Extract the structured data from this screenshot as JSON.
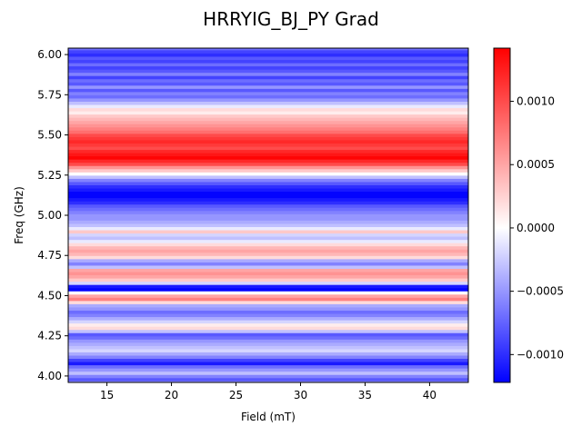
{
  "chart_data": {
    "type": "heatmap",
    "title": "HRRYIG_BJ_PY Grad",
    "xlabel": "Field (mT)",
    "ylabel": "Freq (GHz)",
    "xlim": [
      12,
      43
    ],
    "ylim": [
      3.96,
      6.04
    ],
    "xticks": [
      15,
      20,
      25,
      30,
      35,
      40
    ],
    "yticks": [
      4.0,
      4.25,
      4.5,
      4.75,
      5.0,
      5.25,
      5.5,
      5.75,
      6.0
    ],
    "xtick_labels": [
      "15",
      "20",
      "25",
      "30",
      "35",
      "40"
    ],
    "ytick_labels": [
      "4.00",
      "4.25",
      "4.50",
      "4.75",
      "5.00",
      "5.25",
      "5.50",
      "5.75",
      "6.00"
    ],
    "colormap": "bwr",
    "colors": {
      "low": "#0000ff",
      "mid": "#ffffff",
      "high": "#ff0000"
    },
    "colorbar": {
      "vmin": -0.00122,
      "vmax": 0.00142,
      "ticks": [
        -0.001,
        -0.0005,
        0.0,
        0.0005,
        0.001
      ],
      "tick_labels": [
        "−0.0010",
        "−0.0005",
        "0.0000",
        "0.0005",
        "0.0010"
      ]
    },
    "field_pattern": "values depend on frequency only (constant along field axis)",
    "rows": [
      {
        "freq": 6.04,
        "value": -0.0007
      },
      {
        "freq": 6.02,
        "value": -0.0009
      },
      {
        "freq": 6.0,
        "value": -0.001
      },
      {
        "freq": 5.98,
        "value": -0.0008
      },
      {
        "freq": 5.96,
        "value": -0.0009
      },
      {
        "freq": 5.94,
        "value": -0.0007
      },
      {
        "freq": 5.92,
        "value": -0.0009
      },
      {
        "freq": 5.9,
        "value": -0.0008
      },
      {
        "freq": 5.88,
        "value": -0.0006
      },
      {
        "freq": 5.86,
        "value": -0.0009
      },
      {
        "freq": 5.84,
        "value": -0.0007
      },
      {
        "freq": 5.82,
        "value": -0.0008
      },
      {
        "freq": 5.8,
        "value": -0.0005
      },
      {
        "freq": 5.78,
        "value": -0.0008
      },
      {
        "freq": 5.76,
        "value": -0.0006
      },
      {
        "freq": 5.74,
        "value": -0.0007
      },
      {
        "freq": 5.72,
        "value": -0.0005
      },
      {
        "freq": 5.7,
        "value": -0.0003
      },
      {
        "freq": 5.68,
        "value": -0.0001
      },
      {
        "freq": 5.66,
        "value": 0.0002
      },
      {
        "freq": 5.64,
        "value": 0.0001
      },
      {
        "freq": 5.62,
        "value": 0.0003
      },
      {
        "freq": 5.6,
        "value": 0.0004
      },
      {
        "freq": 5.58,
        "value": 0.0005
      },
      {
        "freq": 5.56,
        "value": 0.0006
      },
      {
        "freq": 5.54,
        "value": 0.0007
      },
      {
        "freq": 5.52,
        "value": 0.0008
      },
      {
        "freq": 5.5,
        "value": 0.001
      },
      {
        "freq": 5.48,
        "value": 0.0011
      },
      {
        "freq": 5.46,
        "value": 0.0012
      },
      {
        "freq": 5.44,
        "value": 0.0011
      },
      {
        "freq": 5.42,
        "value": 0.001
      },
      {
        "freq": 5.4,
        "value": 0.0012
      },
      {
        "freq": 5.38,
        "value": 0.0013
      },
      {
        "freq": 5.36,
        "value": 0.0014
      },
      {
        "freq": 5.34,
        "value": 0.0012
      },
      {
        "freq": 5.32,
        "value": 0.001
      },
      {
        "freq": 5.3,
        "value": 0.0006
      },
      {
        "freq": 5.28,
        "value": 0.0003
      },
      {
        "freq": 5.26,
        "value": 0.0
      },
      {
        "freq": 5.24,
        "value": -0.0003
      },
      {
        "freq": 5.22,
        "value": -0.0006
      },
      {
        "freq": 5.2,
        "value": -0.0008
      },
      {
        "freq": 5.18,
        "value": -0.001
      },
      {
        "freq": 5.16,
        "value": -0.0011
      },
      {
        "freq": 5.14,
        "value": -0.0012
      },
      {
        "freq": 5.12,
        "value": -0.0012
      },
      {
        "freq": 5.1,
        "value": -0.0011
      },
      {
        "freq": 5.08,
        "value": -0.001
      },
      {
        "freq": 5.06,
        "value": -0.0008
      },
      {
        "freq": 5.04,
        "value": -0.0007
      },
      {
        "freq": 5.02,
        "value": -0.0006
      },
      {
        "freq": 5.0,
        "value": -0.0005
      },
      {
        "freq": 4.98,
        "value": -0.0005
      },
      {
        "freq": 4.96,
        "value": -0.0004
      },
      {
        "freq": 4.94,
        "value": -0.0003
      },
      {
        "freq": 4.92,
        "value": -0.0001
      },
      {
        "freq": 4.9,
        "value": 0.0003
      },
      {
        "freq": 4.88,
        "value": -0.0002
      },
      {
        "freq": 4.86,
        "value": -0.0003
      },
      {
        "freq": 4.84,
        "value": -0.0001
      },
      {
        "freq": 4.82,
        "value": 0.0002
      },
      {
        "freq": 4.8,
        "value": 0.0004
      },
      {
        "freq": 4.78,
        "value": 0.0005
      },
      {
        "freq": 4.76,
        "value": 0.0004
      },
      {
        "freq": 4.74,
        "value": 0.0002
      },
      {
        "freq": 4.72,
        "value": -0.0004
      },
      {
        "freq": 4.7,
        "value": -0.0006
      },
      {
        "freq": 4.68,
        "value": -0.0003
      },
      {
        "freq": 4.66,
        "value": 0.0005
      },
      {
        "freq": 4.64,
        "value": 0.0006
      },
      {
        "freq": 4.62,
        "value": 0.0005
      },
      {
        "freq": 4.6,
        "value": 0.0003
      },
      {
        "freq": 4.58,
        "value": -0.0002
      },
      {
        "freq": 4.56,
        "value": -0.0011
      },
      {
        "freq": 4.54,
        "value": -0.0012
      },
      {
        "freq": 4.52,
        "value": 0.0
      },
      {
        "freq": 4.5,
        "value": 0.0005
      },
      {
        "freq": 4.48,
        "value": 0.0007
      },
      {
        "freq": 4.46,
        "value": 0.0002
      },
      {
        "freq": 4.44,
        "value": -0.0004
      },
      {
        "freq": 4.42,
        "value": -0.0005
      },
      {
        "freq": 4.4,
        "value": -0.0007
      },
      {
        "freq": 4.38,
        "value": -0.0006
      },
      {
        "freq": 4.36,
        "value": -0.0004
      },
      {
        "freq": 4.34,
        "value": -0.0002
      },
      {
        "freq": 4.32,
        "value": 0.0001
      },
      {
        "freq": 4.3,
        "value": 0.0002
      },
      {
        "freq": 4.28,
        "value": -0.0003
      },
      {
        "freq": 4.26,
        "value": -0.0008
      },
      {
        "freq": 4.24,
        "value": -0.0007
      },
      {
        "freq": 4.22,
        "value": -0.0005
      },
      {
        "freq": 4.2,
        "value": -0.0004
      },
      {
        "freq": 4.18,
        "value": -0.0003
      },
      {
        "freq": 4.16,
        "value": -0.0002
      },
      {
        "freq": 4.14,
        "value": -0.0004
      },
      {
        "freq": 4.12,
        "value": -0.0006
      },
      {
        "freq": 4.1,
        "value": -0.0009
      },
      {
        "freq": 4.08,
        "value": -0.0011
      },
      {
        "freq": 4.06,
        "value": -0.0007
      },
      {
        "freq": 4.04,
        "value": -0.0005
      },
      {
        "freq": 4.02,
        "value": -0.0003
      },
      {
        "freq": 4.0,
        "value": -0.0006
      },
      {
        "freq": 3.98,
        "value": -0.0008
      },
      {
        "freq": 3.96,
        "value": -0.0004
      }
    ]
  }
}
